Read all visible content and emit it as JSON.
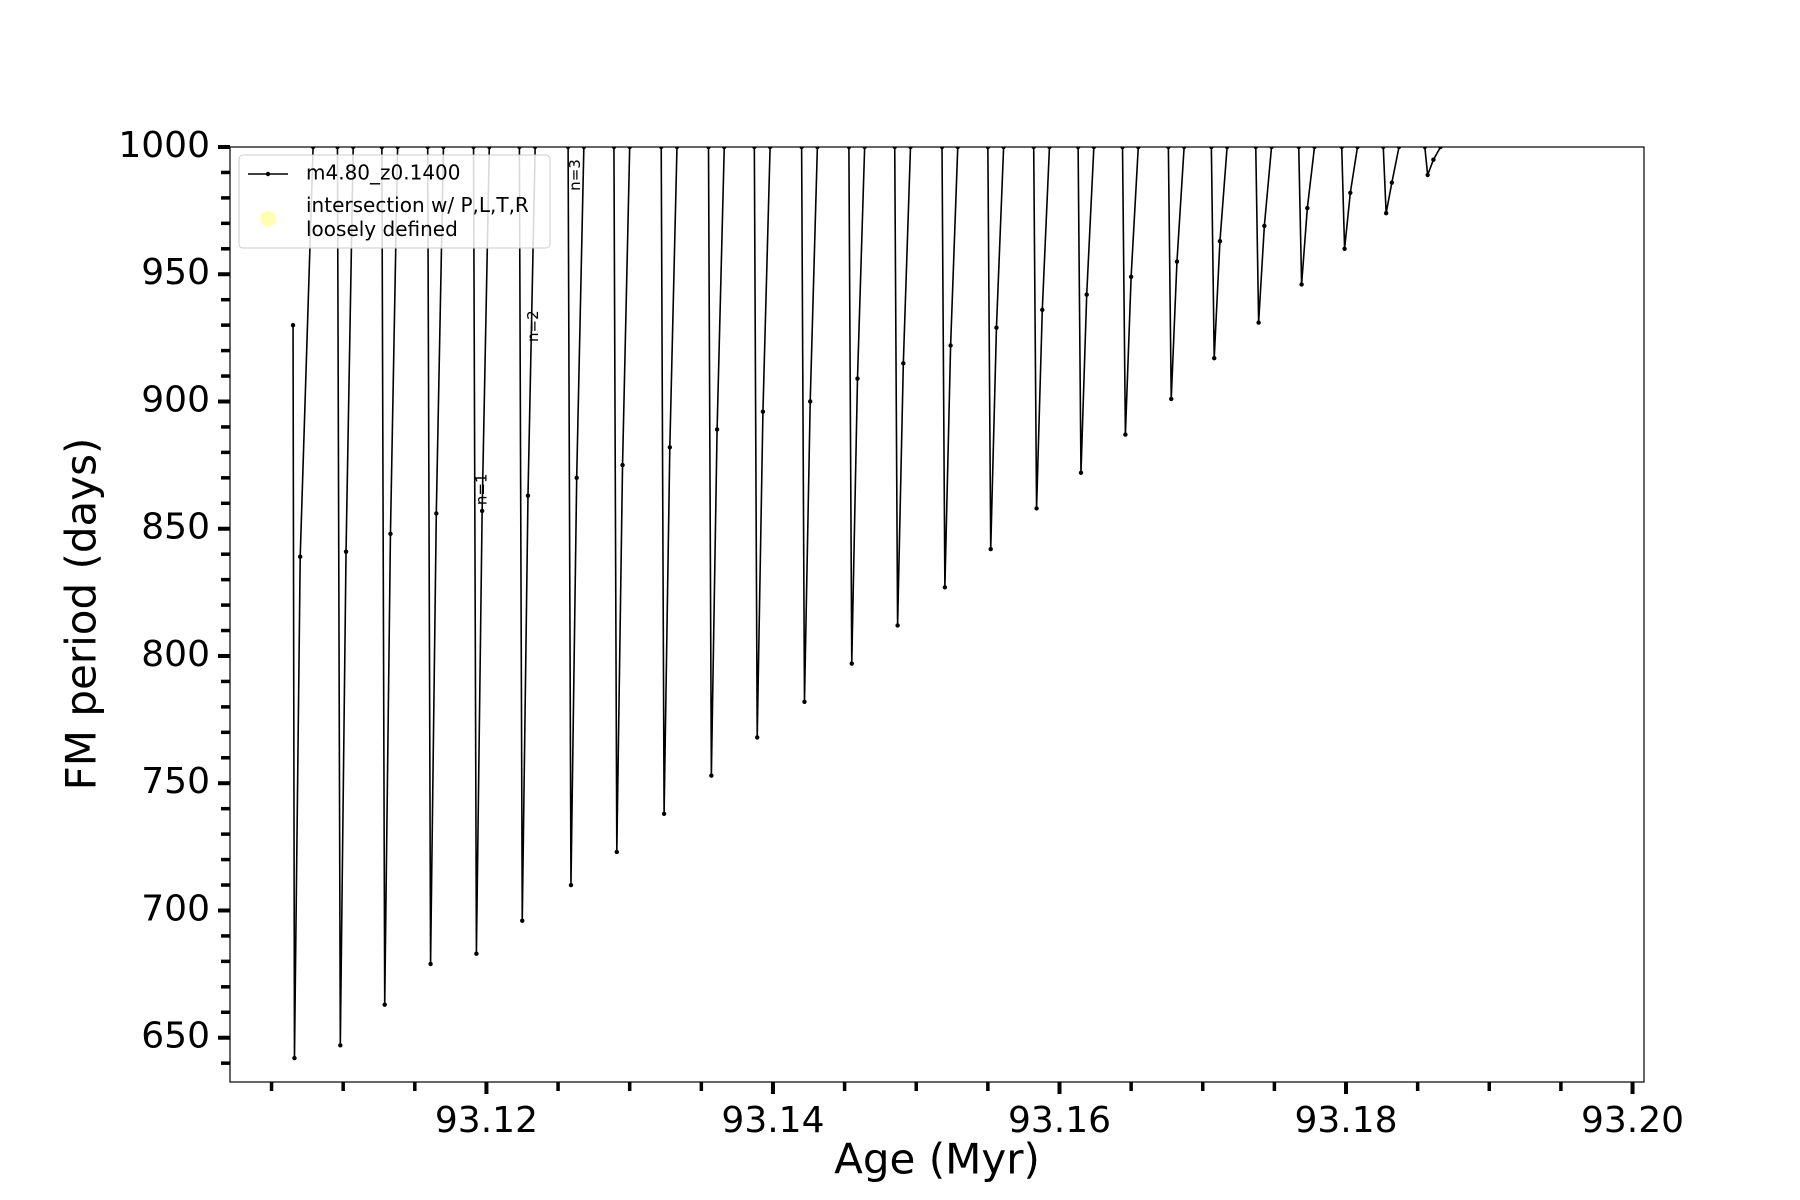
{
  "chart_data": {
    "type": "line",
    "x_label": "Age (Myr)",
    "y_label": "FM period (days)",
    "xlim": [
      93.1021,
      93.2008
    ],
    "ylim": [
      632.6,
      1000
    ],
    "xticks": [
      93.12,
      93.14,
      93.16,
      93.18,
      {
        "value": 93.2,
        "label": "93.20"
      }
    ],
    "xminorticks": [
      93.105,
      93.11,
      93.115,
      93.125,
      93.13,
      93.135,
      93.145,
      93.15,
      93.155,
      93.165,
      93.17,
      93.175,
      93.185,
      93.19,
      93.195
    ],
    "yticks": [
      650,
      700,
      750,
      800,
      850,
      900,
      950,
      1000
    ],
    "yminorticks": [
      640,
      660,
      670,
      680,
      690,
      710,
      720,
      730,
      740,
      760,
      770,
      780,
      790,
      810,
      820,
      830,
      840,
      860,
      870,
      880,
      890,
      910,
      920,
      930,
      940,
      960,
      970,
      980,
      990
    ],
    "legend": "upper left",
    "series": [
      {
        "name": "m4.80_z0.1400",
        "color": "#000000",
        "x": [
          93.1065,
          93.1066,
          93.107,
          93.1079,
          null,
          93.1096,
          93.1098,
          93.1102,
          93.1107,
          null,
          93.1127,
          93.1129,
          93.1133,
          93.1138,
          null,
          93.1159,
          93.1161,
          93.1165,
          93.117,
          null,
          93.1191,
          93.1193,
          93.1197,
          93.1202,
          null,
          93.1223,
          93.1225,
          93.1229,
          93.1234,
          null,
          93.1257,
          93.1259,
          93.1263,
          93.1268,
          null,
          93.1289,
          93.1291,
          93.1295,
          93.13,
          null,
          93.1322,
          93.1324,
          93.1328,
          93.1333,
          null,
          93.1355,
          93.1357,
          93.1361,
          93.1366,
          null,
          93.1387,
          93.1389,
          93.1393,
          93.1398,
          null,
          93.142,
          93.1422,
          93.1426,
          93.1431,
          null,
          93.1453,
          93.1455,
          93.1459,
          93.1464,
          null,
          93.1485,
          93.1487,
          93.1491,
          93.1496,
          null,
          93.1518,
          93.152,
          93.1524,
          93.1529,
          null,
          93.155,
          93.1552,
          93.1556,
          93.1561,
          null,
          93.1582,
          93.1584,
          93.1588,
          93.1593,
          null,
          93.1613,
          93.1615,
          93.1619,
          93.1624,
          null,
          93.1644,
          93.1646,
          93.165,
          93.1655,
          null,
          93.1676,
          93.1678,
          93.1682,
          93.1687,
          null,
          93.1706,
          93.1708,
          93.1712,
          93.1717,
          null,
          93.1737,
          93.1739,
          93.1743,
          93.1748,
          null,
          93.1767,
          93.1769,
          93.1773,
          93.1778,
          null,
          93.1797,
          93.1799,
          93.1803,
          93.1808,
          null,
          93.1826,
          93.1828,
          93.1832,
          93.1837,
          null,
          93.1855,
          93.1857,
          93.1861,
          93.1866
        ],
        "values": [
          930,
          642,
          839,
          1000,
          null,
          1000,
          647,
          841,
          1000,
          null,
          1000,
          663,
          848,
          1000,
          null,
          1000,
          679,
          856,
          1000,
          null,
          1000,
          683,
          857,
          1000,
          null,
          1000,
          696,
          863,
          1000,
          null,
          1000,
          710,
          870,
          1000,
          null,
          1000,
          723,
          875,
          1000,
          null,
          1000,
          738,
          882,
          1000,
          null,
          1000,
          753,
          889,
          1000,
          null,
          1000,
          768,
          896,
          1000,
          null,
          1000,
          782,
          900,
          1000,
          null,
          1000,
          797,
          909,
          1000,
          null,
          1000,
          812,
          915,
          1000,
          null,
          1000,
          827,
          922,
          1000,
          null,
          1000,
          842,
          929,
          1000,
          null,
          1000,
          858,
          936,
          1000,
          null,
          1000,
          872,
          942,
          1000,
          null,
          1000,
          887,
          949,
          1000,
          null,
          1000,
          901,
          955,
          1000,
          null,
          1000,
          917,
          963,
          1000,
          null,
          1000,
          931,
          969,
          1000,
          null,
          1000,
          946,
          976,
          1000,
          null,
          1000,
          960,
          982,
          1000,
          null,
          1000,
          974,
          986,
          1000,
          null,
          1000,
          989,
          995,
          1000
        ]
      }
    ],
    "marker_series": {
      "name": "intersection w/ P,L,T,R\nloosely defined",
      "color": "#ffffb3"
    },
    "annotations": [
      {
        "text": "n=1",
        "x": 93.1197,
        "y": 865.5
      },
      {
        "text": "n=2",
        "x": 93.1233,
        "y": 929.6
      },
      {
        "text": "n=3",
        "x": 93.1262,
        "y": 989
      }
    ]
  }
}
